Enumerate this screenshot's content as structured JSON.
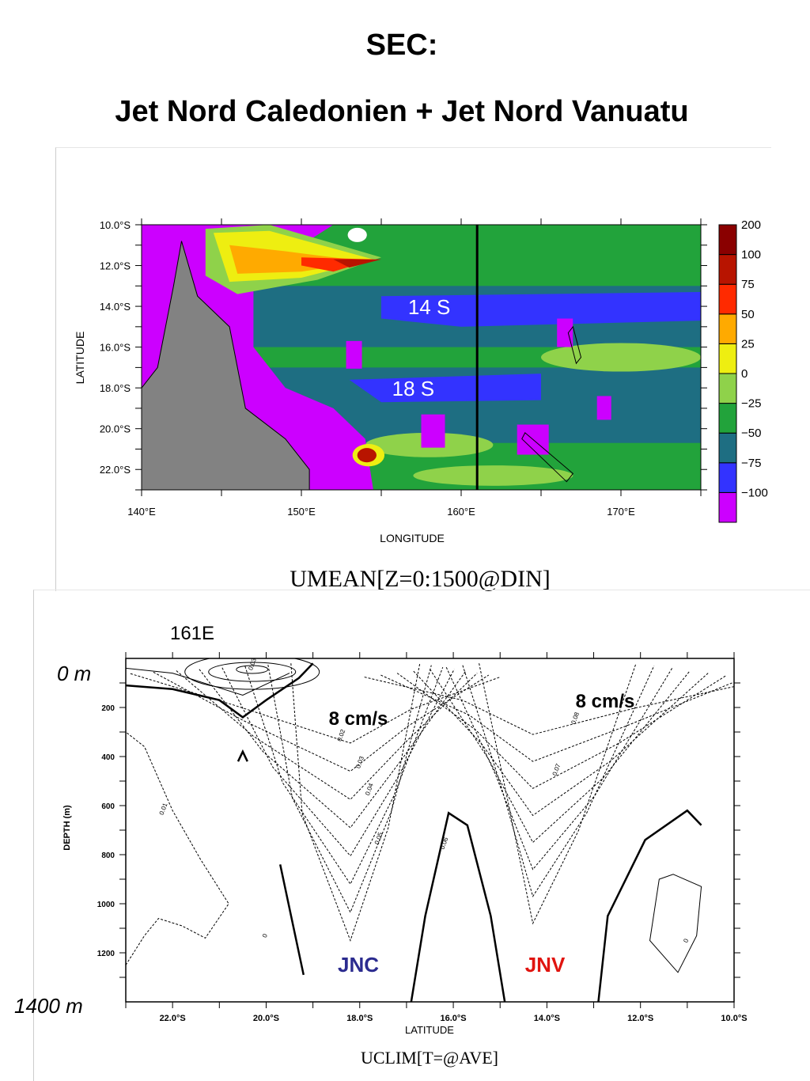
{
  "header": {
    "title": "SEC:",
    "subtitle": "Jet Nord Caledonien + Jet Nord Vanuatu"
  },
  "map_panel": {
    "caption": "UMEAN[Z=0:1500@DIN]",
    "section_line_label": "",
    "jet_labels": [
      "14 S",
      "18 S"
    ]
  },
  "section_panel": {
    "longitude_label": "161E",
    "caption": "UCLIM[T=@AVE]",
    "top_depth_label": "0 m",
    "bottom_depth_label": "1400 m",
    "speed_labels": [
      "8 cm/s",
      "8 cm/s"
    ],
    "jnc_label": "JNC",
    "jnv_label": "JNV"
  },
  "colors": {
    "land": "#828282",
    "jnc": "#2b2b8f",
    "jnv": "#e0140f",
    "levels": [
      "#cc00ff",
      "#3333ff",
      "#1e6e82",
      "#22a33b",
      "#8fd24a",
      "#eeee11",
      "#ffaa00",
      "#ff2a00",
      "#b81400",
      "#8a0000"
    ],
    "level_values": [
      "-100",
      "-75",
      "-50",
      "-25",
      "0",
      "25",
      "50",
      "75",
      "100",
      "200"
    ]
  },
  "chart_data": [
    {
      "type": "heatmap",
      "title": "",
      "xlabel": "LONGITUDE",
      "ylabel": "LATITUDE",
      "x_ticks": [
        "140°E",
        "150°E",
        "160°E",
        "170°E"
      ],
      "y_ticks": [
        "10.0°S",
        "12.0°S",
        "14.0°S",
        "16.0°S",
        "18.0°S",
        "20.0°S",
        "22.0°S"
      ],
      "xlim": [
        140,
        175
      ],
      "ylim": [
        -23,
        -10
      ],
      "colorbar_levels": [
        -100,
        -75,
        -50,
        -25,
        0,
        25,
        50,
        75,
        100,
        200
      ],
      "section_longitude": 161,
      "features": [
        {
          "name": "14 S",
          "lat": -14,
          "lon_range": [
            155,
            174
          ],
          "value": -50
        },
        {
          "name": "18 S",
          "lat": -18,
          "lon_range": [
            153,
            165
          ],
          "value": -50
        }
      ]
    },
    {
      "type": "line",
      "title": "",
      "xlabel": "LATITUDE",
      "ylabel": "DEPTH (m)",
      "x_ticks": [
        "22.0°S",
        "20.0°S",
        "18.0°S",
        "16.0°S",
        "14.0°S",
        "12.0°S",
        "10.0°S"
      ],
      "y_ticks": [
        "200",
        "400",
        "600",
        "800",
        "1000",
        "1200"
      ],
      "xlim": [
        -23,
        -10
      ],
      "ylim": [
        0,
        1400
      ],
      "contour_labels": [
        "0.01",
        "0.02",
        "0.03",
        "0.04",
        "0.05",
        "0.06",
        "0.07",
        "0.08",
        "0.03",
        "0",
        "0"
      ]
    }
  ]
}
